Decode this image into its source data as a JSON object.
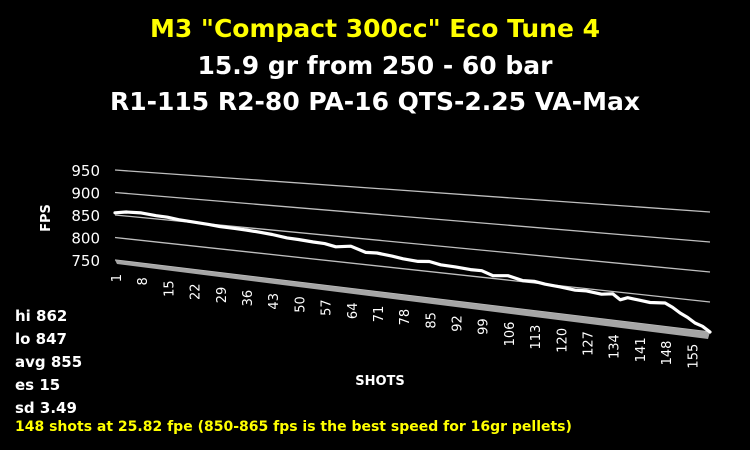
{
  "chart_data": {
    "type": "line",
    "title": "M3 \"Compact 300cc\" Eco Tune 4",
    "subtitle": "15.9 gr from 250 - 60 bar",
    "subtitle2": "R1-115   R2-80   PA-16   QTS-2.25   VA-Max",
    "xlabel": "SHOTS",
    "ylabel": "FPS",
    "ylim": [
      750,
      950
    ],
    "yticks": [
      750,
      800,
      850,
      900,
      950
    ],
    "xticks": [
      1,
      8,
      15,
      22,
      29,
      36,
      43,
      50,
      57,
      64,
      71,
      78,
      85,
      92,
      99,
      106,
      113,
      120,
      127,
      134,
      141,
      148,
      155
    ],
    "xlim": [
      1,
      160
    ],
    "grid": true,
    "style": "3d",
    "series": [
      {
        "color": "#ffffff",
        "x": [
          1,
          4,
          8,
          12,
          15,
          18,
          22,
          26,
          29,
          33,
          36,
          40,
          43,
          47,
          50,
          54,
          57,
          60,
          64,
          68,
          71,
          75,
          78,
          82,
          85,
          88,
          92,
          96,
          99,
          102,
          106,
          110,
          113,
          116,
          120,
          124,
          127,
          131,
          134,
          136,
          138,
          141,
          144,
          148,
          150,
          152,
          154,
          156,
          158,
          160
        ],
        "values": [
          855,
          859,
          860,
          857,
          856,
          853,
          851,
          849,
          847,
          846,
          845,
          843,
          841,
          837,
          836,
          834,
          833,
          829,
          833,
          824,
          825,
          822,
          819,
          817,
          819,
          815,
          814,
          812,
          812,
          805,
          808,
          802,
          803,
          800,
          798,
          795,
          796,
          793,
          796,
          787,
          792,
          790,
          788,
          790,
          784,
          776,
          770,
          762,
          758,
          750
        ]
      }
    ]
  },
  "stats": [
    "hi 862",
    "lo 847",
    "avg 855",
    "es 15",
    "sd 3.49"
  ],
  "note": "148 shots at 25.82 fpe (850-865 fps is the best speed for 16gr pellets)",
  "colors": {
    "title": "#ffff00",
    "note": "#ffff00",
    "background": "#000000",
    "grid": "#bfbfbf",
    "floor": "#a6a6a6"
  }
}
